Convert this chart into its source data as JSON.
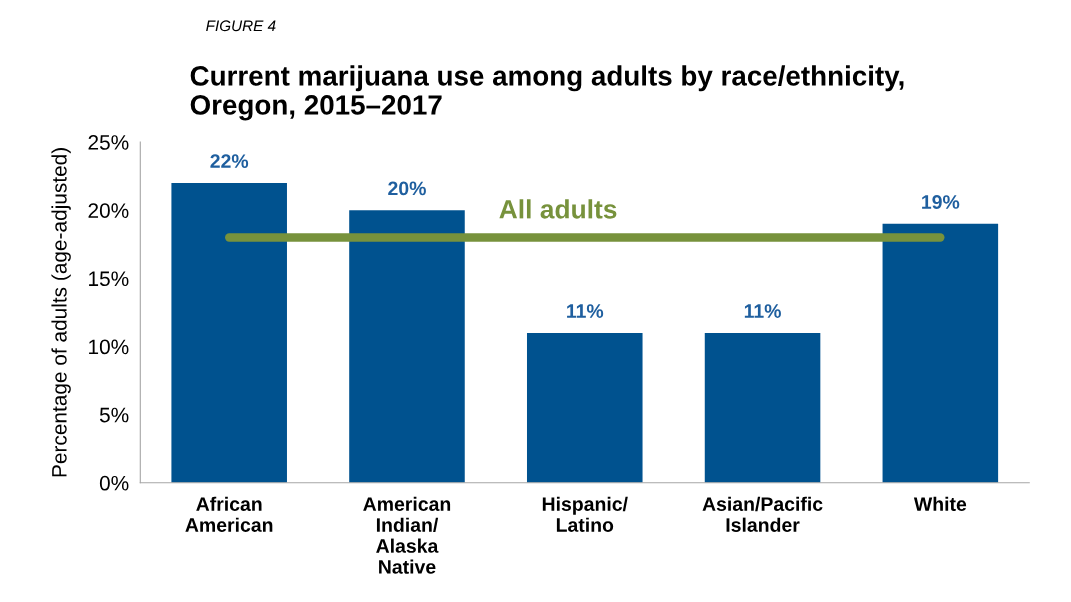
{
  "chart_data": {
    "type": "bar",
    "title": "Current marijuana use among adults by race/ethnicity,\nOregon, 2015–2017",
    "ylabel": "Percentage of adults (age-adjusted)",
    "annotations": [
      "FIGURE 4"
    ],
    "categories": [
      "African\nAmerican",
      "American\nIndian/\nAlaska\nNative",
      "Hispanic/\nLatino",
      "Asian/Pacific\nIslander",
      "White"
    ],
    "values": [
      22,
      20,
      11,
      11,
      19
    ],
    "color": "#00528f",
    "value_labels": [
      "22%",
      "20%",
      "11%",
      "11%",
      "19%"
    ],
    "ylim": [
      0,
      25
    ],
    "yticks": [
      {
        "value": 0,
        "label": "0%"
      },
      {
        "value": 5,
        "label": "5%"
      },
      {
        "value": 10,
        "label": "10%"
      },
      {
        "value": 15,
        "label": "15%"
      },
      {
        "value": 20,
        "label": "20%"
      },
      {
        "value": 25,
        "label": "25%"
      }
    ],
    "ref_lines": [
      {
        "axis": "y",
        "value": 18,
        "label": "All adults",
        "color": "#77923c"
      }
    ],
    "grid": false
  }
}
